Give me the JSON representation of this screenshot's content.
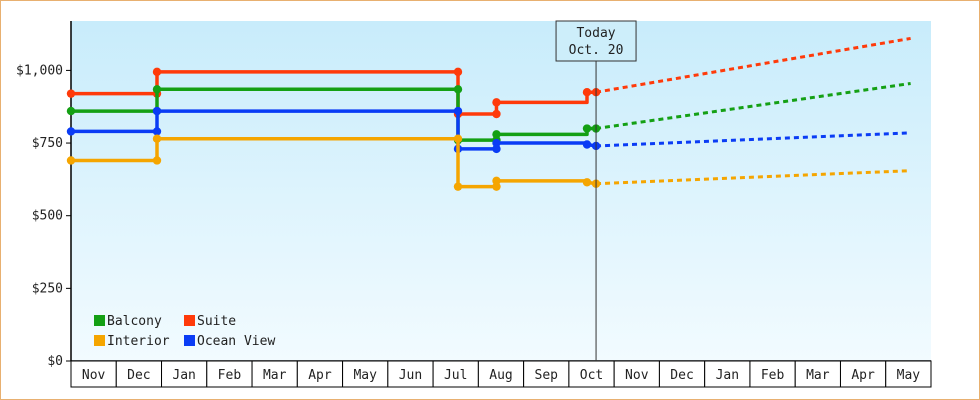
{
  "chart_data": {
    "type": "line",
    "title": "",
    "xlabel": "",
    "ylabel": "",
    "ylim": [
      0,
      1170
    ],
    "y_ticks": [
      0,
      250,
      500,
      750,
      1000
    ],
    "y_tick_labels": [
      "$0",
      "$250",
      "$500",
      "$750",
      "$1,000"
    ],
    "x_labels": [
      "Nov",
      "Dec",
      "Jan",
      "Feb",
      "Mar",
      "Apr",
      "May",
      "Jun",
      "Jul",
      "Aug",
      "Sep",
      "Oct",
      "Nov",
      "Dec",
      "Jan",
      "Feb",
      "Mar",
      "Apr",
      "May"
    ],
    "grid": false,
    "background": "light blue gradient",
    "legend_position": "bottom-left",
    "today_marker": {
      "line1": "Today",
      "line2": "Oct. 20",
      "x": 11.6
    },
    "series": [
      {
        "name": "Suite",
        "color": "#ff3a0a",
        "points": [
          [
            0,
            920
          ],
          [
            1.9,
            920
          ],
          [
            1.9,
            995
          ],
          [
            8.55,
            995
          ],
          [
            8.55,
            850
          ],
          [
            9.4,
            850
          ],
          [
            9.4,
            890
          ],
          [
            11.4,
            890
          ],
          [
            11.4,
            925
          ],
          [
            11.6,
            925
          ]
        ],
        "markers": [
          [
            0,
            920
          ],
          [
            1.9,
            920
          ],
          [
            1.9,
            995
          ],
          [
            8.55,
            995
          ],
          [
            8.55,
            850
          ],
          [
            9.4,
            850
          ],
          [
            9.4,
            890
          ],
          [
            11.4,
            925
          ],
          [
            11.6,
            925
          ]
        ],
        "forecast": [
          [
            11.6,
            925
          ],
          [
            18.55,
            1110
          ]
        ]
      },
      {
        "name": "Balcony",
        "color": "#14a014",
        "points": [
          [
            0,
            860
          ],
          [
            1.9,
            860
          ],
          [
            1.9,
            935
          ],
          [
            8.55,
            935
          ],
          [
            8.55,
            760
          ],
          [
            9.4,
            760
          ],
          [
            9.4,
            780
          ],
          [
            11.4,
            780
          ],
          [
            11.4,
            800
          ],
          [
            11.6,
            800
          ]
        ],
        "markers": [
          [
            0,
            860
          ],
          [
            1.9,
            860
          ],
          [
            1.9,
            935
          ],
          [
            8.55,
            935
          ],
          [
            8.55,
            760
          ],
          [
            9.4,
            760
          ],
          [
            9.4,
            780
          ],
          [
            11.4,
            800
          ],
          [
            11.6,
            800
          ]
        ],
        "forecast": [
          [
            11.6,
            800
          ],
          [
            18.55,
            955
          ]
        ]
      },
      {
        "name": "Ocean View",
        "color": "#0a3cf5",
        "points": [
          [
            0,
            790
          ],
          [
            1.9,
            790
          ],
          [
            1.9,
            860
          ],
          [
            8.55,
            860
          ],
          [
            8.55,
            730
          ],
          [
            9.4,
            730
          ],
          [
            9.4,
            750
          ],
          [
            11.4,
            750
          ],
          [
            11.4,
            745
          ],
          [
            11.6,
            740
          ]
        ],
        "markers": [
          [
            0,
            790
          ],
          [
            1.9,
            790
          ],
          [
            1.9,
            860
          ],
          [
            8.55,
            860
          ],
          [
            8.55,
            730
          ],
          [
            9.4,
            730
          ],
          [
            9.4,
            750
          ],
          [
            11.4,
            745
          ],
          [
            11.6,
            740
          ]
        ],
        "forecast": [
          [
            11.6,
            740
          ],
          [
            18.55,
            785
          ]
        ]
      },
      {
        "name": "Interior",
        "color": "#f5a500",
        "points": [
          [
            0,
            690
          ],
          [
            1.9,
            690
          ],
          [
            1.9,
            765
          ],
          [
            8.55,
            765
          ],
          [
            8.55,
            600
          ],
          [
            9.4,
            600
          ],
          [
            9.4,
            620
          ],
          [
            11.4,
            620
          ],
          [
            11.4,
            615
          ],
          [
            11.6,
            610
          ]
        ],
        "markers": [
          [
            0,
            690
          ],
          [
            1.9,
            690
          ],
          [
            1.9,
            765
          ],
          [
            8.55,
            765
          ],
          [
            8.55,
            600
          ],
          [
            9.4,
            600
          ],
          [
            9.4,
            620
          ],
          [
            11.4,
            615
          ],
          [
            11.6,
            610
          ]
        ],
        "forecast": [
          [
            11.6,
            610
          ],
          [
            18.55,
            655
          ]
        ]
      }
    ],
    "legend": [
      {
        "label": "Balcony",
        "color": "#14a014"
      },
      {
        "label": "Suite",
        "color": "#ff3a0a"
      },
      {
        "label": "Interior",
        "color": "#f5a500"
      },
      {
        "label": "Ocean View",
        "color": "#0a3cf5"
      }
    ]
  }
}
